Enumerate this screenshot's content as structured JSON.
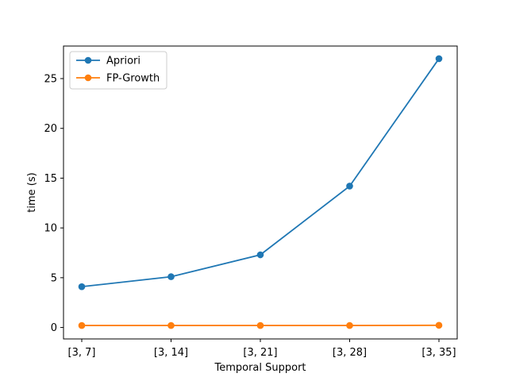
{
  "chart_data": {
    "type": "line",
    "categories": [
      "[3, 7]",
      "[3, 14]",
      "[3, 21]",
      "[3, 28]",
      "[3, 35]"
    ],
    "series": [
      {
        "name": "Apriori",
        "color": "#1f77b4",
        "values": [
          4.1,
          5.1,
          7.3,
          14.2,
          27.0
        ]
      },
      {
        "name": "FP-Growth",
        "color": "#ff7f0e",
        "values": [
          0.2,
          0.2,
          0.2,
          0.2,
          0.22
        ]
      }
    ],
    "title": "",
    "xlabel": "Temporal Support",
    "ylabel": "time (s)",
    "ylim": [
      -1.15,
      28.27
    ],
    "yticks": [
      0,
      5,
      10,
      15,
      20,
      25
    ],
    "grid": false,
    "legend_position": "top-left"
  }
}
